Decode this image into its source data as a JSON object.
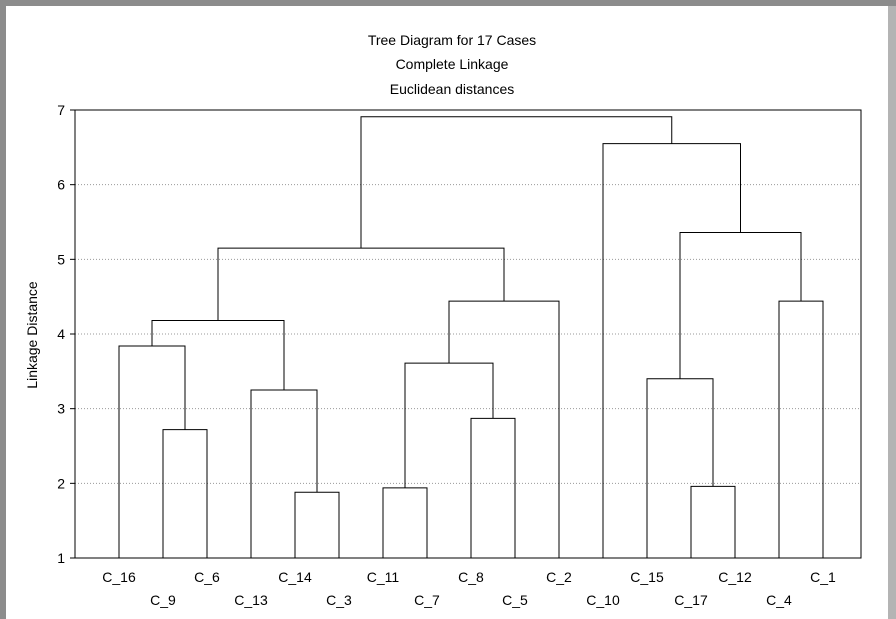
{
  "chart_data": {
    "type": "dendrogram",
    "title": "Tree Diagram for 17 Cases",
    "subtitle_1": "Complete Linkage",
    "subtitle_2": "Euclidean distances",
    "ylabel": "Linkage Distance",
    "ylim": [
      1,
      7
    ],
    "yticks": [
      1,
      2,
      3,
      4,
      5,
      6,
      7
    ],
    "grid": "horizontal dotted",
    "leaves": [
      "C_16",
      "C_9",
      "C_6",
      "C_13",
      "C_14",
      "C_3",
      "C_11",
      "C_7",
      "C_8",
      "C_5",
      "C_2",
      "C_10",
      "C_15",
      "C_17",
      "C_12",
      "C_4",
      "C_1"
    ],
    "merges": [
      {
        "id": "m1",
        "left": "C_9",
        "right": "C_6",
        "height": 2.72
      },
      {
        "id": "m2",
        "left": "C_16",
        "right": "m1",
        "height": 3.84
      },
      {
        "id": "m3",
        "left": "C_14",
        "right": "C_3",
        "height": 1.88
      },
      {
        "id": "m4",
        "left": "C_13",
        "right": "m3",
        "height": 3.25
      },
      {
        "id": "m5",
        "left": "m2",
        "right": "m4",
        "height": 4.18
      },
      {
        "id": "m6",
        "left": "C_11",
        "right": "C_7",
        "height": 1.94
      },
      {
        "id": "m7",
        "left": "C_8",
        "right": "C_5",
        "height": 2.87
      },
      {
        "id": "m8",
        "left": "m6",
        "right": "m7",
        "height": 3.61
      },
      {
        "id": "m9",
        "left": "m8",
        "right": "C_2",
        "height": 4.44
      },
      {
        "id": "m10",
        "left": "m5",
        "right": "m9",
        "height": 5.15
      },
      {
        "id": "m11",
        "left": "C_17",
        "right": "C_12",
        "height": 1.96
      },
      {
        "id": "m12",
        "left": "C_15",
        "right": "m11",
        "height": 3.4
      },
      {
        "id": "m13",
        "left": "C_4",
        "right": "C_1",
        "height": 4.44
      },
      {
        "id": "m14",
        "left": "m12",
        "right": "m13",
        "height": 5.36
      },
      {
        "id": "m15",
        "left": "C_10",
        "right": "m14",
        "height": 6.55
      },
      {
        "id": "m16",
        "left": "m10",
        "right": "m15",
        "height": 6.91
      }
    ]
  }
}
